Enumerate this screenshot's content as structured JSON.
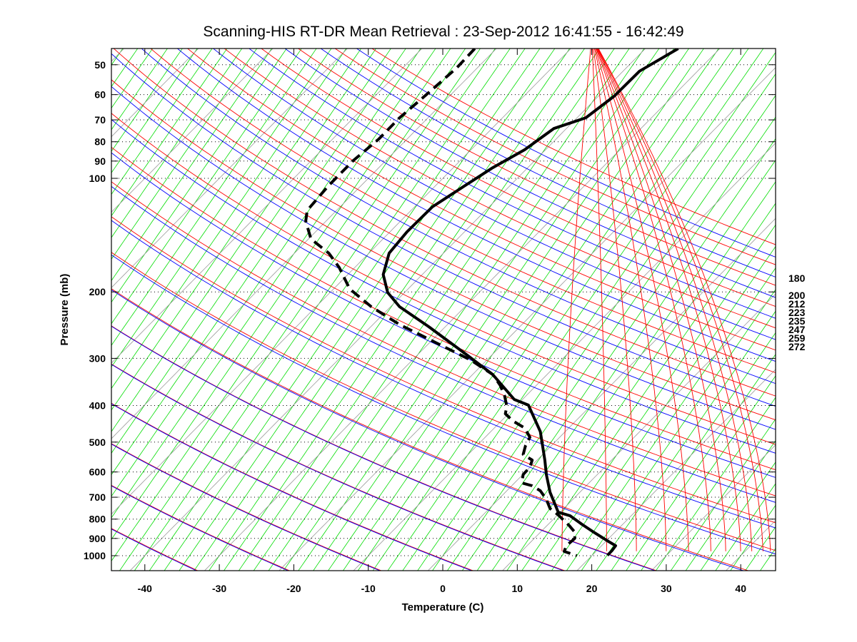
{
  "chart_data": {
    "type": "line",
    "subtype": "skew-T log-p diagram",
    "title": "Scanning-HIS RT-DR Mean Retrieval : 23-Sep-2012 16:41:55 - 16:42:49",
    "xlabel": "Temperature (C)",
    "ylabel": "Pressure (mb)",
    "xlim": [
      -45,
      45
    ],
    "ylim": [
      45,
      1100
    ],
    "yscale": "log",
    "x_ticks": [
      "-40",
      "-30",
      "-20",
      "-10",
      "0",
      "10",
      "20",
      "30",
      "40"
    ],
    "x_tick_values": [
      -40,
      -30,
      -20,
      -10,
      0,
      10,
      20,
      30,
      40
    ],
    "y_ticks": [
      "50",
      "60",
      "70",
      "80",
      "90",
      "100",
      "200",
      "300",
      "400",
      "500",
      "600",
      "700",
      "800",
      "900",
      "1000"
    ],
    "y_tick_values": [
      50,
      60,
      70,
      80,
      90,
      100,
      200,
      300,
      400,
      500,
      600,
      700,
      800,
      900,
      1000
    ],
    "y_grid": "dotted",
    "right_labels": [
      "180",
      "200",
      "212",
      "223",
      "235",
      "247",
      "259",
      "272"
    ],
    "colors": {
      "temperature": "#000000",
      "dewpoint": "#000000",
      "isotherm": "#999999",
      "mixing_ratio": "#00dd00",
      "dry_adiabat": "#ff0000",
      "moist_adiabat": "#0000ff"
    },
    "series": [
      {
        "name": "Temperature",
        "style": "solid",
        "pressure": [
          45.3,
          52.0,
          60.6,
          69.1,
          73.8,
          84.0,
          93.7,
          105.4,
          119.0,
          138.6,
          157.9,
          179.9,
          200.7,
          218.9,
          247.2,
          290.4,
          331.0,
          385.5,
          399,
          469,
          558,
          609,
          679,
          767,
          784,
          826,
          862,
          913,
          941,
          970,
          998
        ],
        "x_value": [
          31.6,
          26.4,
          23.0,
          19.2,
          14.9,
          11.0,
          6.7,
          2.7,
          -1.4,
          -4.8,
          -7.2,
          -8.0,
          -7.4,
          -5.8,
          -1.9,
          2.9,
          6.7,
          9.6,
          11.5,
          13.1,
          13.7,
          13.9,
          14.4,
          15.5,
          17.1,
          18.7,
          20.1,
          22.1,
          23.2,
          22.7,
          22.1
        ]
      },
      {
        "name": "Dewpoint",
        "style": "dashed",
        "pressure": [
          45.3,
          50.9,
          59.3,
          69.1,
          78.7,
          89.7,
          104.4,
          121.6,
          129.8,
          144.8,
          157.9,
          172.3,
          196.3,
          218.9,
          244.1,
          272.1,
          303.4,
          331.0,
          353.3,
          377.2,
          402.7,
          420.6,
          439.3,
          458.8,
          485.6,
          511.6,
          538.9,
          558,
          582.8,
          609,
          641.6,
          652.8,
          672.9,
          708.9,
          750.1,
          780.1,
          833.2,
          869.8,
          901.0,
          941,
          974.3,
          1000
        ],
        "x_value": [
          4.3,
          1.9,
          -1.9,
          -5.8,
          -8.6,
          -12.0,
          -15.3,
          -18.2,
          -18.4,
          -17.7,
          -15.3,
          -13.9,
          -12.5,
          -9.6,
          -5.8,
          -1.0,
          3.8,
          6.7,
          7.7,
          8.3,
          8.6,
          8.4,
          9.4,
          11.0,
          11.7,
          11.1,
          10.8,
          12.0,
          11.7,
          10.8,
          10.6,
          12.0,
          13.1,
          13.9,
          14.4,
          15.5,
          17.0,
          17.8,
          17.7,
          16.6,
          16.3,
          18.0
        ]
      }
    ]
  }
}
